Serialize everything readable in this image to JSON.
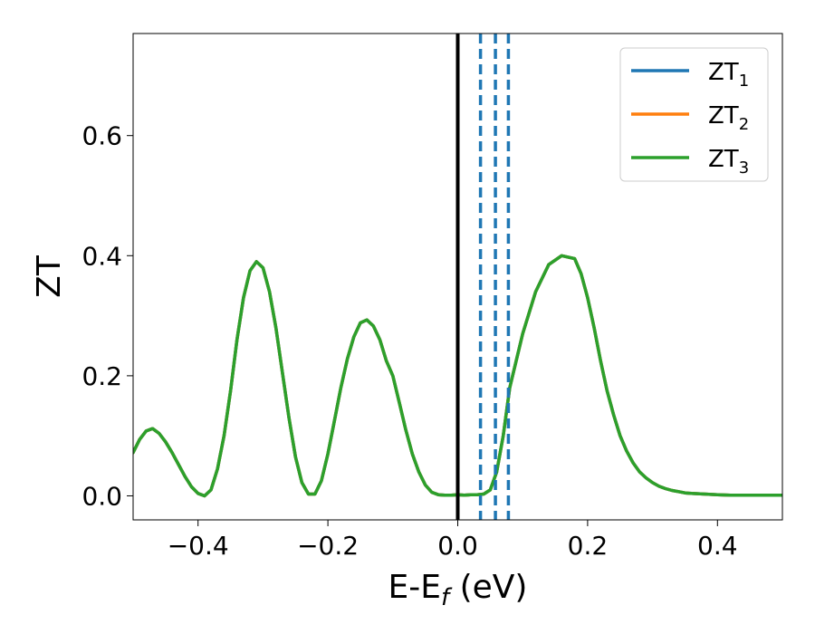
{
  "chart_data": {
    "type": "line",
    "title": "",
    "xlabel_main": "E-E",
    "xlabel_sub": "f",
    "xlabel_tail": " (eV)",
    "ylabel": "ZT",
    "xlim": [
      -0.5,
      0.5
    ],
    "ylim": [
      -0.04,
      0.77
    ],
    "grid": false,
    "legend_position": "top-right",
    "x_ticks": [
      -0.4,
      -0.2,
      0.0,
      0.2,
      0.4
    ],
    "x_tick_labels": [
      "−0.4",
      "−0.2",
      "0.0",
      "0.2",
      "0.4"
    ],
    "y_ticks": [
      0.0,
      0.2,
      0.4,
      0.6
    ],
    "y_tick_labels": [
      "0.0",
      "0.2",
      "0.4",
      "0.6"
    ],
    "series": [
      {
        "name": "ZT",
        "sub": "1",
        "color": "#1f77b4"
      },
      {
        "name": "ZT",
        "sub": "2",
        "color": "#ff7f0e"
      },
      {
        "name": "ZT",
        "sub": "3",
        "color": "#2ca02c"
      }
    ],
    "curve": {
      "x": [
        -0.5,
        -0.49,
        -0.48,
        -0.47,
        -0.46,
        -0.45,
        -0.44,
        -0.43,
        -0.42,
        -0.41,
        -0.4,
        -0.39,
        -0.38,
        -0.37,
        -0.36,
        -0.35,
        -0.34,
        -0.33,
        -0.32,
        -0.31,
        -0.3,
        -0.29,
        -0.28,
        -0.27,
        -0.26,
        -0.25,
        -0.24,
        -0.23,
        -0.22,
        -0.21,
        -0.2,
        -0.19,
        -0.18,
        -0.17,
        -0.16,
        -0.15,
        -0.14,
        -0.13,
        -0.12,
        -0.11,
        -0.1,
        -0.09,
        -0.08,
        -0.07,
        -0.06,
        -0.05,
        -0.04,
        -0.03,
        -0.02,
        -0.01,
        0.0,
        0.01,
        0.02,
        0.03,
        0.04,
        0.05,
        0.06,
        0.07,
        0.08,
        0.1,
        0.12,
        0.14,
        0.16,
        0.18,
        0.19,
        0.2,
        0.21,
        0.22,
        0.23,
        0.24,
        0.25,
        0.26,
        0.27,
        0.28,
        0.29,
        0.3,
        0.31,
        0.32,
        0.33,
        0.34,
        0.35,
        0.36,
        0.38,
        0.4,
        0.42,
        0.44,
        0.46,
        0.48,
        0.5
      ],
      "y": [
        0.072,
        0.094,
        0.108,
        0.112,
        0.104,
        0.09,
        0.072,
        0.052,
        0.032,
        0.015,
        0.004,
        0.0,
        0.01,
        0.045,
        0.1,
        0.175,
        0.26,
        0.33,
        0.375,
        0.39,
        0.38,
        0.34,
        0.28,
        0.205,
        0.13,
        0.065,
        0.022,
        0.003,
        0.003,
        0.025,
        0.07,
        0.125,
        0.18,
        0.228,
        0.265,
        0.288,
        0.293,
        0.283,
        0.26,
        0.225,
        0.2,
        0.155,
        0.11,
        0.07,
        0.04,
        0.018,
        0.006,
        0.002,
        0.001,
        0.001,
        0.002,
        0.001,
        0.002,
        0.002,
        0.003,
        0.01,
        0.04,
        0.1,
        0.18,
        0.27,
        0.34,
        0.385,
        0.4,
        0.395,
        0.37,
        0.33,
        0.28,
        0.225,
        0.175,
        0.135,
        0.1,
        0.075,
        0.055,
        0.04,
        0.03,
        0.022,
        0.016,
        0.012,
        0.009,
        0.007,
        0.005,
        0.004,
        0.003,
        0.002,
        0.001,
        0.001,
        0.001,
        0.001,
        0.001
      ]
    },
    "fermi_line": {
      "x": 0.0,
      "color": "#000000"
    },
    "dashed_lines": {
      "x": [
        0.035,
        0.058,
        0.078
      ],
      "color": "#1f77b4"
    }
  }
}
